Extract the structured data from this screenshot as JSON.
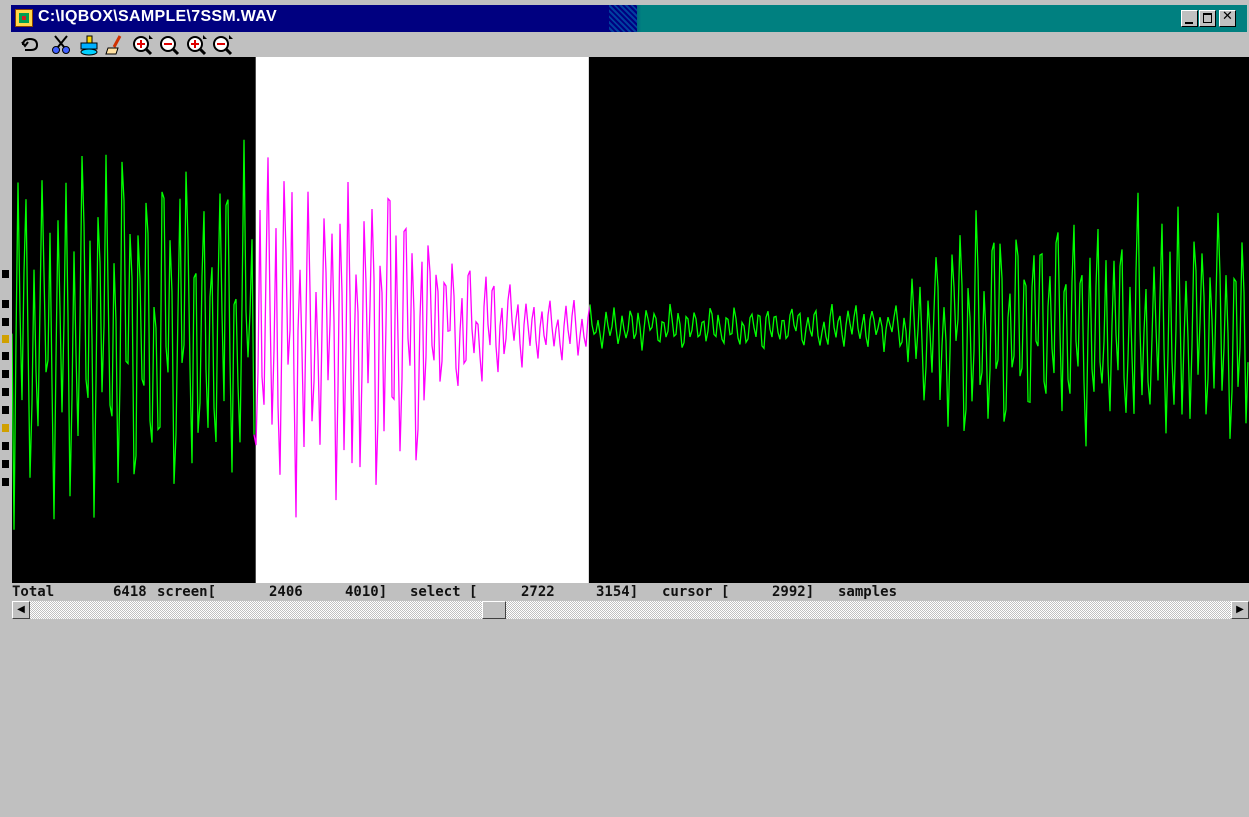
{
  "window": {
    "title": "C:\\IQBOX\\SAMPLE\\7SSM.WAV"
  },
  "toolbar": {
    "tools": [
      "undo-icon",
      "scissors-icon",
      "paste-icon",
      "eraser-icon",
      "zoom-in-icon",
      "zoom-out-icon",
      "zoom-in-all-icon",
      "zoom-out-all-icon"
    ]
  },
  "waveform": {
    "background_color": "#000000",
    "selection_background_color": "#ffffff",
    "wave_color": "#00ff00",
    "selection_wave_color": "#ff00ff",
    "screen_start": 2406,
    "screen_end": 4010,
    "select_start": 2722,
    "select_end": 3154,
    "cursor": 2992
  },
  "status": {
    "total_label": "Total",
    "total_value": "6418",
    "screen_label": "screen[",
    "screen_start": "2406",
    "screen_end": "4010]",
    "select_label": "select [",
    "select_start": "2722",
    "select_end": "3154]",
    "cursor_label": "cursor [",
    "cursor_value": "2992]",
    "samples_label": "samples"
  }
}
